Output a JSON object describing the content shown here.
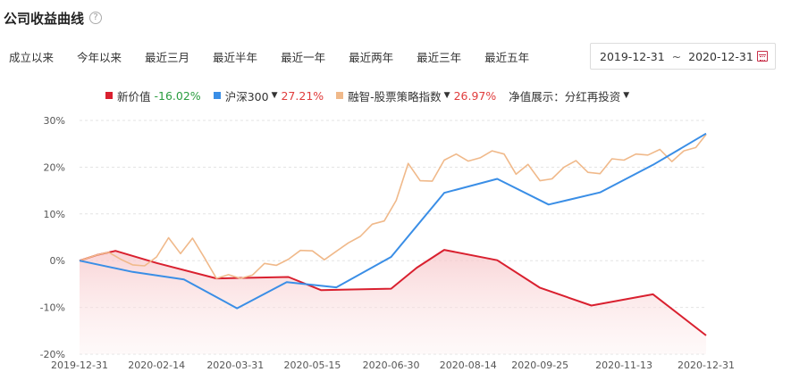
{
  "header": {
    "title": "公司收益曲线",
    "help_icon": "?"
  },
  "range_tabs": [
    "成立以来",
    "今年以来",
    "最近三月",
    "最近半年",
    "最近一年",
    "最近两年",
    "最近三年",
    "最近五年"
  ],
  "date_range": {
    "start": "2019-12-31",
    "separator": "~",
    "end": "2020-12-31",
    "icon": "calendar-icon"
  },
  "legend": [
    {
      "name": "新价值",
      "value": "-16.02%",
      "color": "#d9202f",
      "has_dropdown": false
    },
    {
      "name": "沪深300",
      "value": "27.21%",
      "color": "#3a8ee6",
      "has_dropdown": true
    },
    {
      "name": "融智-股票策略指数",
      "value": "26.97%",
      "color": "#f0b98a",
      "has_dropdown": true
    },
    {
      "name": "净值展示：分红再投资",
      "value": "",
      "color": "",
      "has_dropdown": true
    }
  ],
  "chart_data": {
    "type": "line",
    "x_ticks": [
      "2019-12-31",
      "2020-02-14",
      "2020-03-31",
      "2020-05-15",
      "2020-06-30",
      "2020-08-14",
      "2020-09-25",
      "2020-11-13",
      "2020-12-31"
    ],
    "y_ticks": [
      "30%",
      "20%",
      "10%",
      "0%",
      "-10%",
      "-20%"
    ],
    "ylim": [
      -20,
      30
    ],
    "grid": "horizontal dashed",
    "legend_position": "top-center",
    "series": [
      {
        "name": "新价值",
        "color": "#d9202f",
        "area_fill": true,
        "points": [
          [
            "2019-12-31",
            0
          ],
          [
            "2020-01-10",
            1.2
          ],
          [
            "2020-01-21",
            2.1
          ],
          [
            "2020-02-14",
            -0.5
          ],
          [
            "2020-03-20",
            -3.8
          ],
          [
            "2020-05-01",
            -3.5
          ],
          [
            "2020-05-20",
            -6.3
          ],
          [
            "2020-06-30",
            -6.0
          ],
          [
            "2020-07-15",
            -1.5
          ],
          [
            "2020-07-31",
            2.3
          ],
          [
            "2020-08-31",
            0.1
          ],
          [
            "2020-09-25",
            -5.8
          ],
          [
            "2020-10-25",
            -9.6
          ],
          [
            "2020-11-30",
            -7.2
          ],
          [
            "2020-12-31",
            -16.0
          ]
        ]
      },
      {
        "name": "沪深300",
        "color": "#3a8ee6",
        "area_fill": false,
        "points": [
          [
            "2019-12-31",
            0
          ],
          [
            "2020-01-31",
            -2.4
          ],
          [
            "2020-03-01",
            -4.0
          ],
          [
            "2020-04-01",
            -10.2
          ],
          [
            "2020-04-30",
            -4.6
          ],
          [
            "2020-05-29",
            -5.7
          ],
          [
            "2020-06-30",
            0.8
          ],
          [
            "2020-07-31",
            14.5
          ],
          [
            "2020-08-31",
            17.5
          ],
          [
            "2020-09-30",
            12.0
          ],
          [
            "2020-10-30",
            14.6
          ],
          [
            "2020-11-30",
            20.5
          ],
          [
            "2020-12-31",
            27.2
          ]
        ]
      },
      {
        "name": "融智-股票策略指数",
        "color": "#f0b98a",
        "area_fill": false,
        "points": [
          [
            "2019-12-31",
            0
          ],
          [
            "2020-01-10",
            1.2
          ],
          [
            "2020-01-17",
            1.8
          ],
          [
            "2020-01-24",
            0.3
          ],
          [
            "2020-01-31",
            -0.9
          ],
          [
            "2020-02-07",
            -1.1
          ],
          [
            "2020-02-14",
            0.8
          ],
          [
            "2020-02-21",
            4.9
          ],
          [
            "2020-02-28",
            1.5
          ],
          [
            "2020-03-06",
            4.8
          ],
          [
            "2020-03-13",
            0.6
          ],
          [
            "2020-03-20",
            -3.8
          ],
          [
            "2020-03-27",
            -3.0
          ],
          [
            "2020-04-03",
            -3.8
          ],
          [
            "2020-04-10",
            -3.1
          ],
          [
            "2020-04-17",
            -0.6
          ],
          [
            "2020-04-24",
            -1.0
          ],
          [
            "2020-05-01",
            0.3
          ],
          [
            "2020-05-08",
            2.2
          ],
          [
            "2020-05-15",
            2.1
          ],
          [
            "2020-05-22",
            0.2
          ],
          [
            "2020-05-29",
            2.0
          ],
          [
            "2020-06-05",
            3.8
          ],
          [
            "2020-06-12",
            5.2
          ],
          [
            "2020-06-19",
            7.8
          ],
          [
            "2020-06-26",
            8.5
          ],
          [
            "2020-07-03",
            12.9
          ],
          [
            "2020-07-10",
            20.8
          ],
          [
            "2020-07-17",
            17.1
          ],
          [
            "2020-07-24",
            17.0
          ],
          [
            "2020-07-31",
            21.5
          ],
          [
            "2020-08-07",
            22.8
          ],
          [
            "2020-08-14",
            21.3
          ],
          [
            "2020-08-21",
            22.0
          ],
          [
            "2020-08-28",
            23.5
          ],
          [
            "2020-09-04",
            22.8
          ],
          [
            "2020-09-11",
            18.5
          ],
          [
            "2020-09-18",
            20.6
          ],
          [
            "2020-09-25",
            17.1
          ],
          [
            "2020-10-02",
            17.5
          ],
          [
            "2020-10-09",
            20.0
          ],
          [
            "2020-10-16",
            21.4
          ],
          [
            "2020-10-23",
            18.9
          ],
          [
            "2020-10-30",
            18.6
          ],
          [
            "2020-11-06",
            21.8
          ],
          [
            "2020-11-13",
            21.5
          ],
          [
            "2020-11-20",
            22.8
          ],
          [
            "2020-11-27",
            22.6
          ],
          [
            "2020-12-04",
            23.8
          ],
          [
            "2020-12-11",
            21.2
          ],
          [
            "2020-12-18",
            23.5
          ],
          [
            "2020-12-25",
            24.2
          ],
          [
            "2020-12-31",
            27.0
          ]
        ]
      }
    ]
  }
}
